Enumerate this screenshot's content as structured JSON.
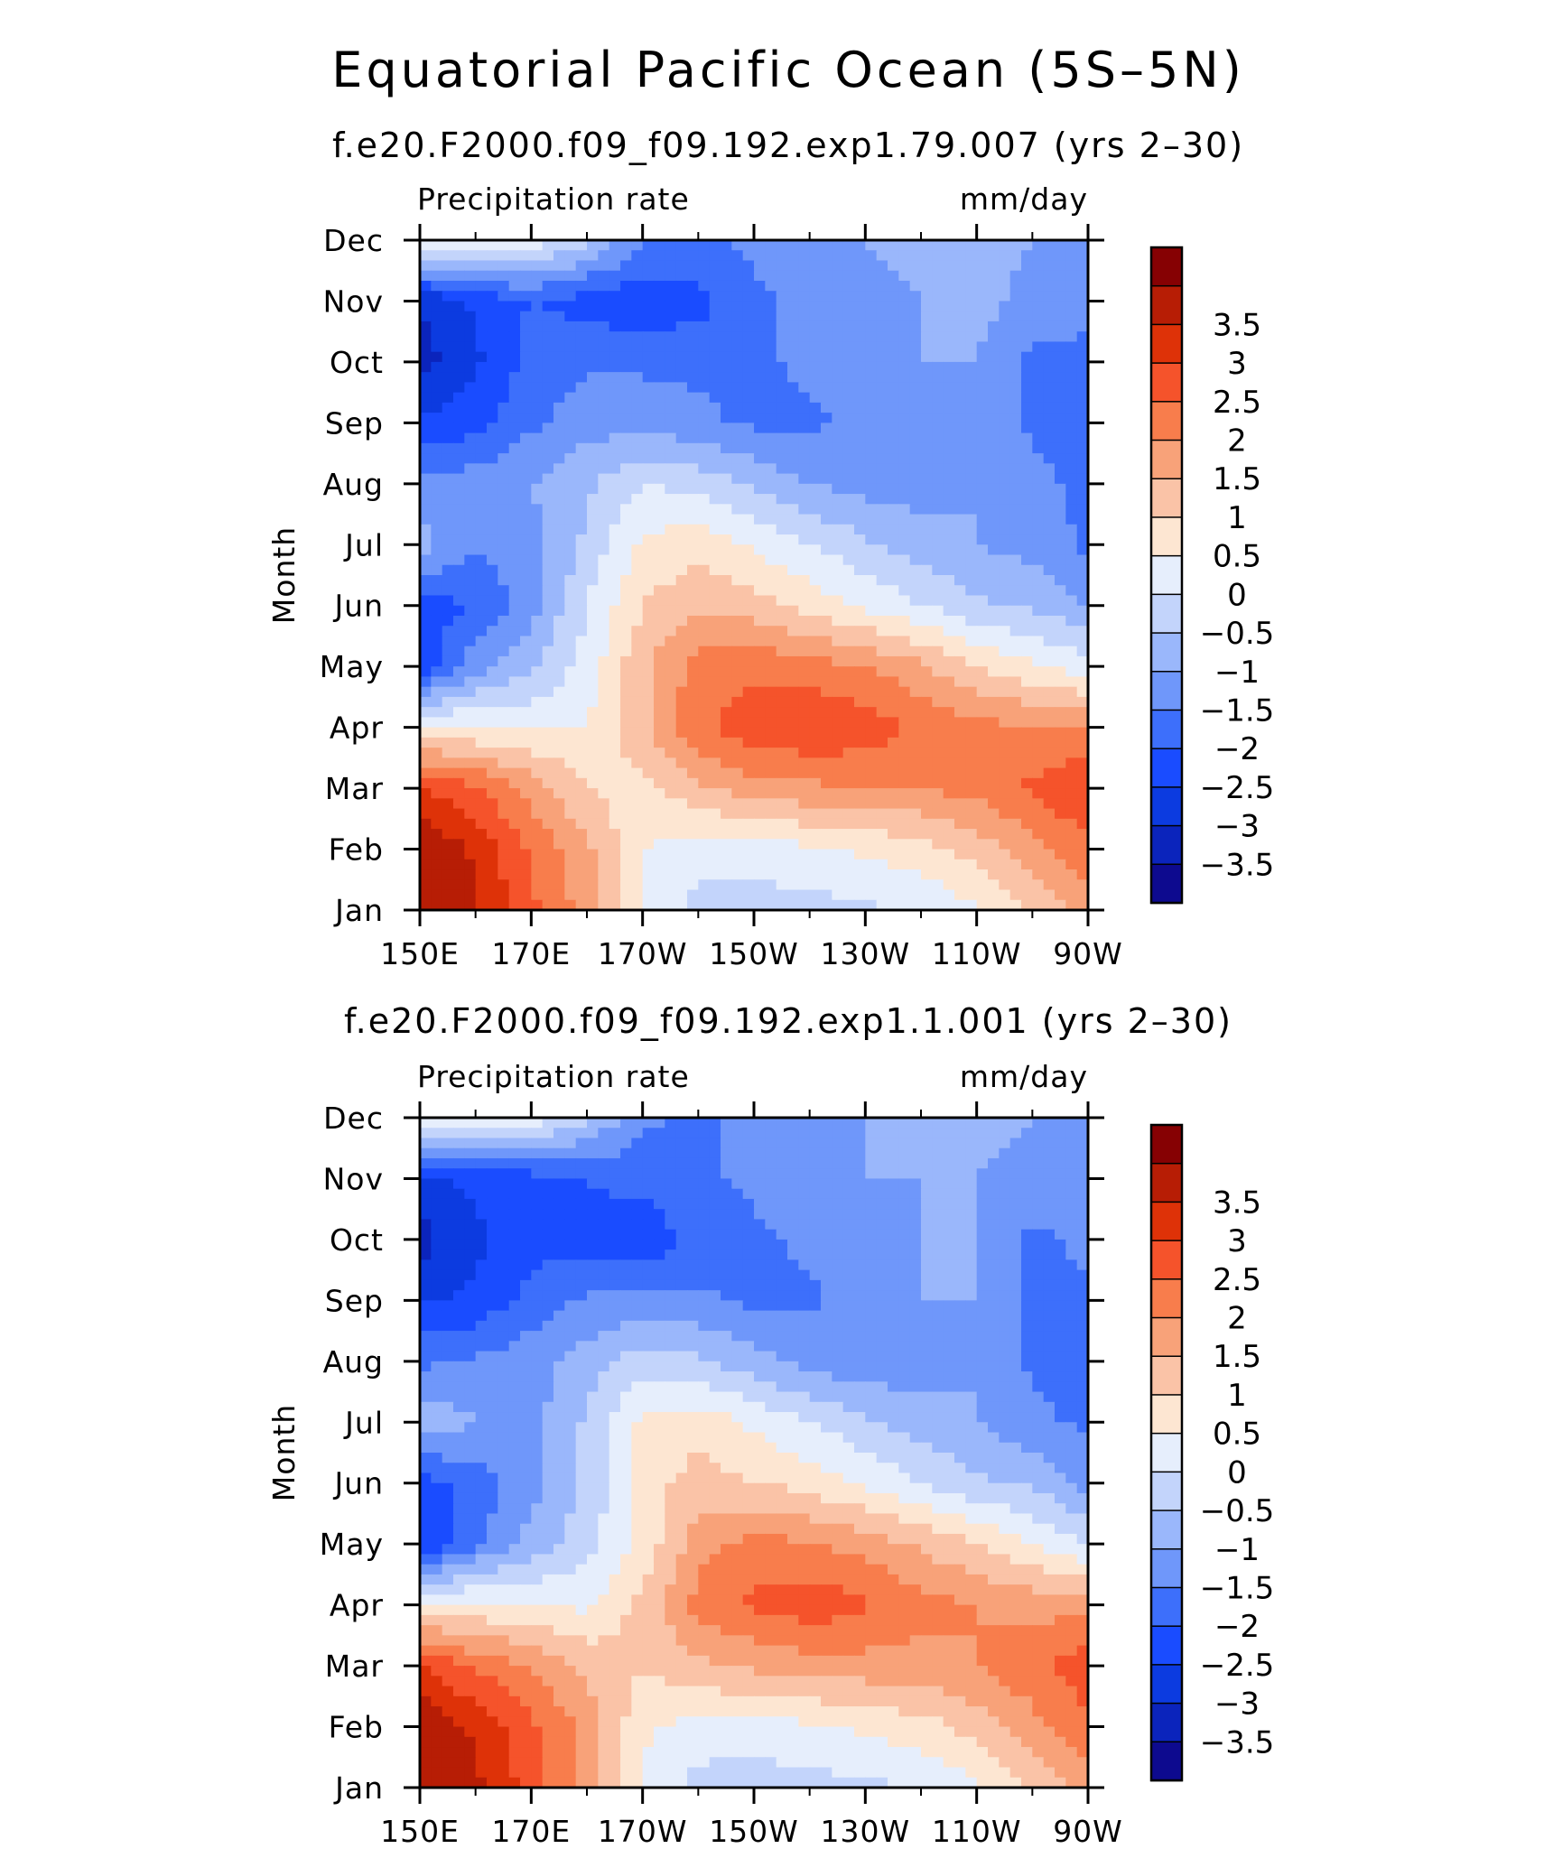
{
  "title": "Equatorial Pacific Ocean (5S–5N)",
  "colors": {
    "levels": [
      "#0d0a8f",
      "#0b24bc",
      "#0c3be0",
      "#1a4cff",
      "#3d6ffb",
      "#6f97fa",
      "#9ab7fb",
      "#c3d4fb",
      "#e6eefc",
      "#fde6d2",
      "#fac3a7",
      "#f8a279",
      "#f87d4c",
      "#f5532b",
      "#de3208",
      "#b71d05",
      "#860103"
    ]
  },
  "chart_data": [
    {
      "type": "heatmap",
      "subtitle": "f.e20.F2000.f09_f09.192.exp1.79.007 (yrs 2–30)",
      "left_label": "Precipitation rate",
      "right_label": "mm/day",
      "ylabel": "Month",
      "xlabel": "",
      "x_ticks": [
        "150E",
        "170E",
        "170W",
        "150W",
        "130W",
        "110W",
        "90W"
      ],
      "y_ticks": [
        "Jan",
        "Feb",
        "Mar",
        "Apr",
        "May",
        "Jun",
        "Jul",
        "Aug",
        "Sep",
        "Oct",
        "Nov",
        "Dec"
      ],
      "x_lon": [
        150,
        160,
        170,
        180,
        190,
        200,
        210,
        220,
        230,
        240,
        250,
        260,
        270
      ],
      "z": [
        [
          4.0,
          3.6,
          2.6,
          1.8,
          0.4,
          -0.2,
          -0.3,
          -0.2,
          -0.1,
          0.1,
          0.4,
          1.0,
          1.8
        ],
        [
          4.0,
          3.4,
          2.4,
          1.6,
          0.5,
          0.2,
          0.3,
          0.4,
          0.6,
          0.8,
          1.2,
          1.8,
          2.4
        ],
        [
          3.0,
          2.6,
          1.8,
          1.0,
          0.8,
          1.4,
          1.8,
          1.9,
          2.0,
          2.0,
          2.2,
          2.6,
          3.0
        ],
        [
          0.6,
          0.5,
          0.4,
          0.5,
          1.4,
          2.4,
          2.8,
          3.0,
          2.8,
          2.4,
          2.2,
          2.0,
          2.0
        ],
        [
          -2.4,
          -1.2,
          -0.6,
          0.2,
          1.4,
          2.2,
          2.4,
          2.2,
          2.0,
          1.6,
          1.0,
          0.6,
          0.2
        ],
        [
          -2.2,
          -2.0,
          -1.2,
          0.0,
          1.0,
          1.4,
          1.2,
          0.8,
          0.4,
          0.0,
          -0.4,
          -0.6,
          -1.0
        ],
        [
          -0.8,
          -1.4,
          -1.2,
          -0.4,
          0.6,
          0.8,
          0.4,
          0.0,
          -0.4,
          -0.8,
          -1.0,
          -1.2,
          -1.6
        ],
        [
          -1.4,
          -1.2,
          -1.0,
          -0.6,
          0.0,
          -0.2,
          -0.6,
          -1.0,
          -1.2,
          -1.2,
          -1.0,
          -1.4,
          -1.6
        ],
        [
          -2.4,
          -2.2,
          -1.6,
          -1.2,
          -1.2,
          -1.4,
          -1.6,
          -1.6,
          -1.4,
          -1.2,
          -1.0,
          -1.6,
          -1.6
        ],
        [
          -3.2,
          -2.6,
          -1.8,
          -1.6,
          -1.6,
          -1.6,
          -1.6,
          -1.4,
          -1.2,
          -1.0,
          -1.0,
          -1.6,
          -1.6
        ],
        [
          -3.0,
          -2.4,
          -2.0,
          -2.2,
          -2.4,
          -2.2,
          -1.6,
          -1.4,
          -1.2,
          -1.0,
          -0.8,
          -1.2,
          -1.4
        ],
        [
          0.8,
          0.6,
          0.4,
          -0.4,
          -1.4,
          -1.6,
          -1.4,
          -1.2,
          -1.0,
          -0.8,
          -0.8,
          -1.0,
          -1.0
        ]
      ],
      "colorbar_labels": [
        "3.5",
        "3",
        "2.5",
        "2",
        "1.5",
        "1",
        "0.5",
        "0",
        "−0.5",
        "−1",
        "−1.5",
        "−2",
        "−2.5",
        "−3",
        "−3.5"
      ]
    },
    {
      "type": "heatmap",
      "subtitle": "f.e20.F2000.f09_f09.192.exp1.1.001 (yrs 2–30)",
      "left_label": "Precipitation rate",
      "right_label": "mm/day",
      "ylabel": "Month",
      "xlabel": "",
      "x_ticks": [
        "150E",
        "170E",
        "170W",
        "150W",
        "130W",
        "110W",
        "90W"
      ],
      "y_ticks": [
        "Jan",
        "Feb",
        "Mar",
        "Apr",
        "May",
        "Jun",
        "Jul",
        "Aug",
        "Sep",
        "Oct",
        "Nov",
        "Dec"
      ],
      "x_lon": [
        150,
        160,
        170,
        180,
        190,
        200,
        210,
        220,
        230,
        240,
        250,
        260,
        270
      ],
      "z": [
        [
          4.0,
          3.6,
          2.8,
          1.8,
          0.4,
          -0.2,
          -0.3,
          -0.2,
          -0.1,
          0.0,
          0.4,
          1.0,
          1.8
        ],
        [
          4.0,
          3.4,
          2.6,
          1.8,
          0.6,
          0.3,
          0.3,
          0.4,
          0.6,
          0.8,
          1.2,
          1.8,
          2.4
        ],
        [
          3.0,
          2.4,
          2.0,
          1.4,
          1.0,
          1.4,
          1.6,
          1.8,
          1.8,
          1.8,
          2.0,
          2.4,
          2.8
        ],
        [
          0.6,
          0.6,
          0.5,
          0.4,
          1.2,
          2.2,
          2.6,
          2.8,
          2.6,
          2.2,
          2.0,
          1.8,
          1.8
        ],
        [
          -2.6,
          -1.6,
          -0.8,
          -0.2,
          0.6,
          1.8,
          2.2,
          2.0,
          1.8,
          1.4,
          1.0,
          0.5,
          0.0
        ],
        [
          -2.2,
          -1.8,
          -1.2,
          -0.4,
          0.8,
          1.2,
          1.0,
          0.8,
          0.4,
          0.0,
          -0.4,
          -0.6,
          -1.2
        ],
        [
          -0.6,
          -1.0,
          -1.2,
          -0.4,
          0.6,
          0.8,
          0.4,
          0.0,
          -0.4,
          -0.8,
          -1.0,
          -1.4,
          -1.6
        ],
        [
          -1.6,
          -1.4,
          -1.2,
          -0.8,
          -0.2,
          -0.4,
          -0.8,
          -1.2,
          -1.4,
          -1.2,
          -1.0,
          -1.6,
          -1.6
        ],
        [
          -2.6,
          -2.4,
          -1.8,
          -1.4,
          -1.4,
          -1.4,
          -1.6,
          -1.6,
          -1.2,
          -1.0,
          -1.0,
          -1.6,
          -1.6
        ],
        [
          -3.2,
          -2.6,
          -2.2,
          -2.2,
          -2.4,
          -1.8,
          -1.6,
          -1.4,
          -1.2,
          -1.0,
          -1.0,
          -1.6,
          -1.4
        ],
        [
          -2.6,
          -2.4,
          -2.2,
          -2.0,
          -1.8,
          -1.6,
          -1.4,
          -1.2,
          -1.0,
          -1.0,
          -1.0,
          -1.2,
          -1.4
        ],
        [
          0.8,
          0.6,
          0.4,
          -0.4,
          -1.4,
          -1.6,
          -1.4,
          -1.2,
          -1.0,
          -0.8,
          -0.8,
          -1.0,
          -1.0
        ]
      ],
      "colorbar_labels": [
        "3.5",
        "3",
        "2.5",
        "2",
        "1.5",
        "1",
        "0.5",
        "0",
        "−0.5",
        "−1",
        "−1.5",
        "−2",
        "−2.5",
        "−3",
        "−3.5"
      ]
    }
  ]
}
